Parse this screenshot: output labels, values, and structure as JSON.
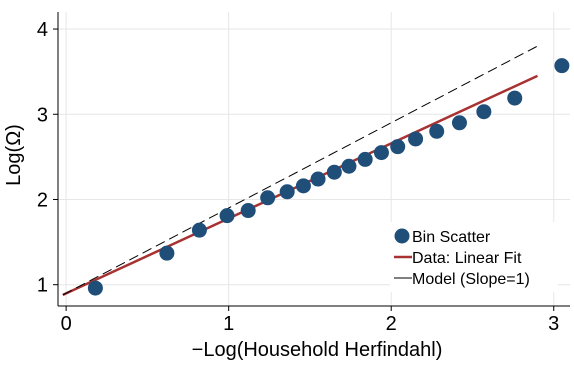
{
  "chart_data": {
    "type": "scatter",
    "title": "",
    "xlabel": "−Log(Household Herfindahl)",
    "ylabel": "Log(Ω)",
    "xlim": [
      -0.05,
      3.1
    ],
    "ylim": [
      0.75,
      4.2
    ],
    "x_ticks": [
      0,
      1,
      2,
      3
    ],
    "y_ticks": [
      1,
      2,
      3,
      4
    ],
    "grid": true,
    "legend_position": "bottom-right",
    "series": [
      {
        "name": "Bin Scatter",
        "kind": "scatter",
        "color": "#1f4e79",
        "points": [
          {
            "x": 0.18,
            "y": 0.96
          },
          {
            "x": 0.62,
            "y": 1.37
          },
          {
            "x": 0.82,
            "y": 1.64
          },
          {
            "x": 0.99,
            "y": 1.81
          },
          {
            "x": 1.12,
            "y": 1.87
          },
          {
            "x": 1.24,
            "y": 2.02
          },
          {
            "x": 1.36,
            "y": 2.09
          },
          {
            "x": 1.46,
            "y": 2.16
          },
          {
            "x": 1.55,
            "y": 2.24
          },
          {
            "x": 1.65,
            "y": 2.32
          },
          {
            "x": 1.74,
            "y": 2.39
          },
          {
            "x": 1.84,
            "y": 2.47
          },
          {
            "x": 1.94,
            "y": 2.55
          },
          {
            "x": 2.04,
            "y": 2.62
          },
          {
            "x": 2.15,
            "y": 2.71
          },
          {
            "x": 2.28,
            "y": 2.8
          },
          {
            "x": 2.42,
            "y": 2.9
          },
          {
            "x": 2.57,
            "y": 3.03
          },
          {
            "x": 2.76,
            "y": 3.19
          },
          {
            "x": 3.05,
            "y": 3.57
          }
        ]
      },
      {
        "name": "Data: Linear Fit",
        "kind": "line",
        "color": "#a83232",
        "points": [
          {
            "x": -0.02,
            "y": 0.88
          },
          {
            "x": 2.9,
            "y": 3.45
          }
        ]
      },
      {
        "name": "Model (Slope=1)",
        "kind": "dashed-line",
        "color": "#000000",
        "points": [
          {
            "x": -0.02,
            "y": 0.88
          },
          {
            "x": 2.9,
            "y": 3.8
          }
        ]
      }
    ]
  }
}
